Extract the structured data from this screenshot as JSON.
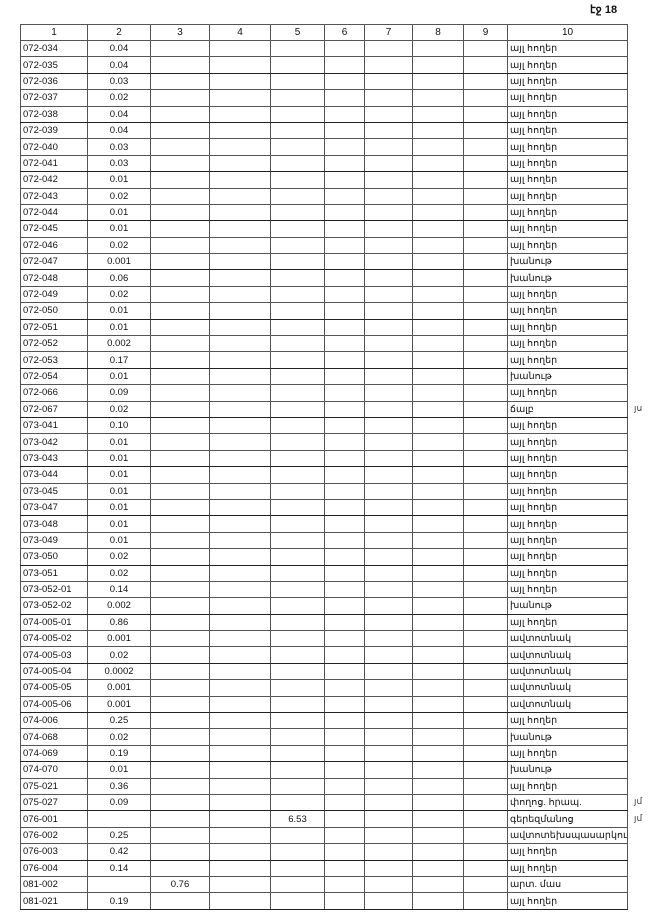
{
  "page_label": "էջ 18",
  "headers": [
    "1",
    "2",
    "3",
    "4",
    "5",
    "6",
    "7",
    "8",
    "9",
    "10"
  ],
  "rows": [
    [
      "072-034",
      "0.04",
      "",
      "",
      "",
      "",
      "",
      "",
      "",
      "այլ հողեր"
    ],
    [
      "072-035",
      "0.04",
      "",
      "",
      "",
      "",
      "",
      "",
      "",
      "այլ հողեր"
    ],
    [
      "072-036",
      "0.03",
      "",
      "",
      "",
      "",
      "",
      "",
      "",
      "այլ հողեր"
    ],
    [
      "072-037",
      "0.02",
      "",
      "",
      "",
      "",
      "",
      "",
      "",
      "այլ հողեր"
    ],
    [
      "072-038",
      "0.04",
      "",
      "",
      "",
      "",
      "",
      "",
      "",
      "այլ հողեր"
    ],
    [
      "072-039",
      "0.04",
      "",
      "",
      "",
      "",
      "",
      "",
      "",
      "այլ հողեր"
    ],
    [
      "072-040",
      "0.03",
      "",
      "",
      "",
      "",
      "",
      "",
      "",
      "այլ հողեր"
    ],
    [
      "072-041",
      "0.03",
      "",
      "",
      "",
      "",
      "",
      "",
      "",
      "այլ հողեր"
    ],
    [
      "072-042",
      "0.01",
      "",
      "",
      "",
      "",
      "",
      "",
      "",
      "այլ հողեր"
    ],
    [
      "072-043",
      "0.02",
      "",
      "",
      "",
      "",
      "",
      "",
      "",
      "այլ հողեր"
    ],
    [
      "072-044",
      "0.01",
      "",
      "",
      "",
      "",
      "",
      "",
      "",
      "այլ հողեր"
    ],
    [
      "072-045",
      "0.01",
      "",
      "",
      "",
      "",
      "",
      "",
      "",
      "այլ հողեր"
    ],
    [
      "072-046",
      "0.02",
      "",
      "",
      "",
      "",
      "",
      "",
      "",
      "այլ հողեր"
    ],
    [
      "072-047",
      "0.001",
      "",
      "",
      "",
      "",
      "",
      "",
      "",
      "խանութ"
    ],
    [
      "072-048",
      "0.06",
      "",
      "",
      "",
      "",
      "",
      "",
      "",
      "խանութ"
    ],
    [
      "072-049",
      "0.02",
      "",
      "",
      "",
      "",
      "",
      "",
      "",
      "այլ հողեր"
    ],
    [
      "072-050",
      "0.01",
      "",
      "",
      "",
      "",
      "",
      "",
      "",
      "այլ հողեր"
    ],
    [
      "072-051",
      "0.01",
      "",
      "",
      "",
      "",
      "",
      "",
      "",
      "այլ հողեր"
    ],
    [
      "072-052",
      "0.002",
      "",
      "",
      "",
      "",
      "",
      "",
      "",
      "այլ հողեր"
    ],
    [
      "072-053",
      "0.17",
      "",
      "",
      "",
      "",
      "",
      "",
      "",
      "այլ հողեր"
    ],
    [
      "072-054",
      "0.01",
      "",
      "",
      "",
      "",
      "",
      "",
      "",
      "խանութ"
    ],
    [
      "072-066",
      "0.09",
      "",
      "",
      "",
      "",
      "",
      "",
      "",
      "այլ հողեր"
    ],
    [
      "072-067",
      "0.02",
      "",
      "",
      "",
      "",
      "",
      "",
      "",
      "ճալբ"
    ],
    [
      "073-041",
      "0.10",
      "",
      "",
      "",
      "",
      "",
      "",
      "",
      "այլ հողեր"
    ],
    [
      "073-042",
      "0.01",
      "",
      "",
      "",
      "",
      "",
      "",
      "",
      "այլ հողեր"
    ],
    [
      "073-043",
      "0.01",
      "",
      "",
      "",
      "",
      "",
      "",
      "",
      "այլ հողեր"
    ],
    [
      "073-044",
      "0.01",
      "",
      "",
      "",
      "",
      "",
      "",
      "",
      "այլ հողեր"
    ],
    [
      "073-045",
      "0.01",
      "",
      "",
      "",
      "",
      "",
      "",
      "",
      "այլ հողեր"
    ],
    [
      "073-047",
      "0.01",
      "",
      "",
      "",
      "",
      "",
      "",
      "",
      "այլ հողեր"
    ],
    [
      "073-048",
      "0.01",
      "",
      "",
      "",
      "",
      "",
      "",
      "",
      "այլ հողեր"
    ],
    [
      "073-049",
      "0.01",
      "",
      "",
      "",
      "",
      "",
      "",
      "",
      "այլ հողեր"
    ],
    [
      "073-050",
      "0.02",
      "",
      "",
      "",
      "",
      "",
      "",
      "",
      "այլ հողեր"
    ],
    [
      "073-051",
      "0.02",
      "",
      "",
      "",
      "",
      "",
      "",
      "",
      "այլ հողեր"
    ],
    [
      "073-052-01",
      "0.14",
      "",
      "",
      "",
      "",
      "",
      "",
      "",
      "այլ հողեր"
    ],
    [
      "073-052-02",
      "0.002",
      "",
      "",
      "",
      "",
      "",
      "",
      "",
      "խանութ"
    ],
    [
      "074-005-01",
      "0.86",
      "",
      "",
      "",
      "",
      "",
      "",
      "",
      "այլ հողեր"
    ],
    [
      "074-005-02",
      "0.001",
      "",
      "",
      "",
      "",
      "",
      "",
      "",
      "ավտոտնակ"
    ],
    [
      "074-005-03",
      "0.02",
      "",
      "",
      "",
      "",
      "",
      "",
      "",
      "ավտոտնակ"
    ],
    [
      "074-005-04",
      "0.0002",
      "",
      "",
      "",
      "",
      "",
      "",
      "",
      "ավտոտնակ"
    ],
    [
      "074-005-05",
      "0.001",
      "",
      "",
      "",
      "",
      "",
      "",
      "",
      "ավտոտնակ"
    ],
    [
      "074-005-06",
      "0.001",
      "",
      "",
      "",
      "",
      "",
      "",
      "",
      "ավտոտնակ"
    ],
    [
      "074-006",
      "0.25",
      "",
      "",
      "",
      "",
      "",
      "",
      "",
      "այլ հողեր"
    ],
    [
      "074-068",
      "0.02",
      "",
      "",
      "",
      "",
      "",
      "",
      "",
      "խանութ"
    ],
    [
      "074-069",
      "0.19",
      "",
      "",
      "",
      "",
      "",
      "",
      "",
      "այլ հողեր"
    ],
    [
      "074-070",
      "0.01",
      "",
      "",
      "",
      "",
      "",
      "",
      "",
      "խանութ"
    ],
    [
      "075-021",
      "0.36",
      "",
      "",
      "",
      "",
      "",
      "",
      "",
      "այլ հողեր"
    ],
    [
      "075-027",
      "0.09",
      "",
      "",
      "",
      "",
      "",
      "",
      "",
      "փողոց. հրապ."
    ],
    [
      "076-001",
      "",
      "",
      "",
      "6.53",
      "",
      "",
      "",
      "",
      "գերեզմանոց"
    ],
    [
      "076-002",
      "0.25",
      "",
      "",
      "",
      "",
      "",
      "",
      "",
      "ավտոտեխսպասարկու"
    ],
    [
      "076-003",
      "0.42",
      "",
      "",
      "",
      "",
      "",
      "",
      "",
      "այլ հողեր"
    ],
    [
      "076-004",
      "0.14",
      "",
      "",
      "",
      "",
      "",
      "",
      "",
      "այլ հողեր"
    ],
    [
      "081-002",
      "",
      "0.76",
      "",
      "",
      "",
      "",
      "",
      "",
      "արտ. մաս"
    ],
    [
      "081-021",
      "0.19",
      "",
      "",
      "",
      "",
      "",
      "",
      "",
      "այլ հողեր"
    ]
  ],
  "margin_notes": [
    {
      "row": 22,
      "text": "յս"
    },
    {
      "row": 46,
      "text": "յմ"
    },
    {
      "row": 47,
      "text": "յմ"
    }
  ]
}
